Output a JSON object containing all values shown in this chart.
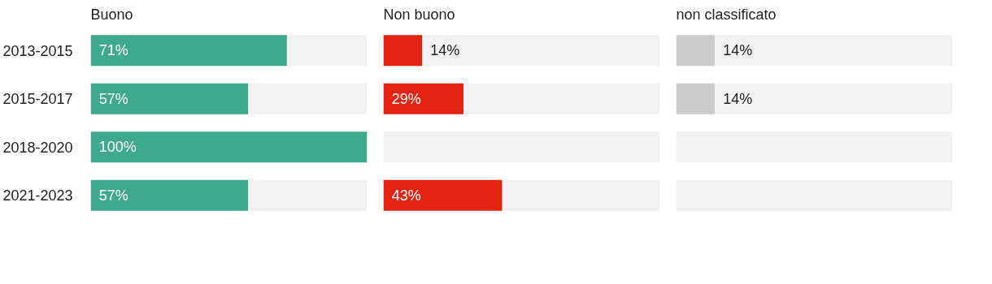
{
  "chart_data": [
    {
      "type": "bar",
      "orientation": "horizontal",
      "stacked": true,
      "title": "Buono",
      "categories": [
        "2013-2015",
        "2015-2017",
        "2018-2020",
        "2021-2023"
      ],
      "xlim": [
        0,
        100
      ],
      "tick_labels": "y",
      "series": [
        {
          "color": "#3fa98c",
          "values": [
            71,
            57,
            100,
            57
          ],
          "value_labels": [
            "71%",
            "57%",
            "100%",
            "57%"
          ]
        },
        {
          "color": "#f2f2f2",
          "values": [
            29,
            43,
            null,
            43
          ]
        }
      ]
    },
    {
      "type": "bar",
      "orientation": "horizontal",
      "stacked": true,
      "title": "Non buono",
      "categories": [
        null,
        null,
        null,
        null
      ],
      "xlim": [
        0,
        100
      ],
      "tick_labels": false,
      "series": [
        {
          "color": "#e52313",
          "values": [
            14,
            29,
            null,
            43
          ],
          "value_labels": [
            "14%",
            "29%",
            null,
            "43%"
          ]
        },
        {
          "color": "#f2f2f2",
          "values": [
            86,
            71,
            100,
            57
          ]
        }
      ]
    },
    {
      "type": "bar",
      "orientation": "horizontal",
      "stacked": true,
      "title": "non classificato",
      "categories": [
        null,
        null,
        null,
        null
      ],
      "xlim": [
        0,
        100
      ],
      "tick_labels": false,
      "series": [
        {
          "color": "#cccccc",
          "values": [
            14,
            14,
            null,
            null
          ],
          "value_labels": [
            "14%",
            "14%",
            null,
            null
          ]
        },
        {
          "color": "#f2f2f2",
          "values": [
            86,
            86,
            100,
            100
          ]
        }
      ]
    }
  ]
}
